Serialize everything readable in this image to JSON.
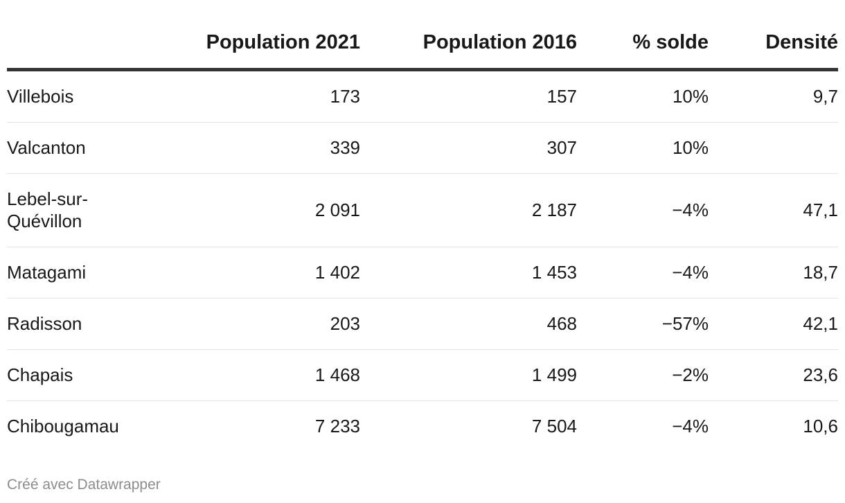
{
  "table": {
    "headers": {
      "name": "",
      "population_2021": "Population 2021",
      "population_2016": "Population 2016",
      "solde": "% solde",
      "densite": "Densité"
    },
    "rows": [
      {
        "name": "Villebois",
        "population_2021": "173",
        "population_2016": "157",
        "solde": "10%",
        "densite": "9,7"
      },
      {
        "name": "Valcanton",
        "population_2021": "339",
        "population_2016": "307",
        "solde": "10%",
        "densite": ""
      },
      {
        "name": "Lebel-sur-Quévillon",
        "population_2021": "2 091",
        "population_2016": "2 187",
        "solde": "−4%",
        "densite": "47,1"
      },
      {
        "name": "Matagami",
        "population_2021": "1 402",
        "population_2016": "1 453",
        "solde": "−4%",
        "densite": "18,7"
      },
      {
        "name": "Radisson",
        "population_2021": "203",
        "population_2016": "468",
        "solde": "−57%",
        "densite": "42,1"
      },
      {
        "name": "Chapais",
        "population_2021": "1 468",
        "population_2016": "1 499",
        "solde": "−2%",
        "densite": "23,6"
      },
      {
        "name": "Chibougamau",
        "population_2021": "7 233",
        "population_2016": "7 504",
        "solde": "−4%",
        "densite": "10,6"
      }
    ]
  },
  "footer": {
    "credit": "Créé avec Datawrapper"
  }
}
